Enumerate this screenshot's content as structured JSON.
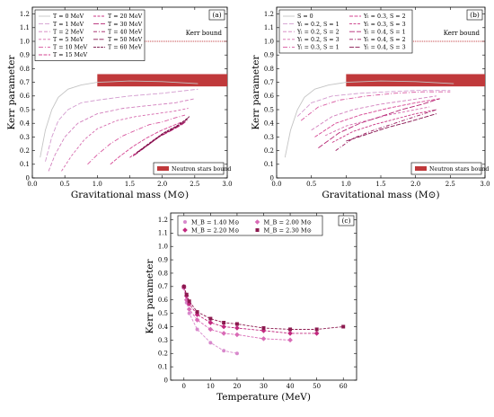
{
  "colors": {
    "band": "#c0393b",
    "bound": "#c0393b",
    "seq": [
      "#c4c4c4",
      "#d39ccf",
      "#d27fbd",
      "#d66aad",
      "#d8569f",
      "#d54391",
      "#c93483",
      "#b52573",
      "#9c1a60",
      "#86134f",
      "#740d42"
    ],
    "c_series": [
      "#d889cc",
      "#d96ab6",
      "#c2287f",
      "#8c1a4f"
    ]
  },
  "chart_data": [
    {
      "type": "line",
      "panel": "(a)",
      "xlabel": "Gravitational mass (M⊙)",
      "ylabel": "Kerr parameter",
      "xlim": [
        0,
        3
      ],
      "ylim": [
        0,
        1.25
      ],
      "xticks": [
        "0.0",
        "0.5",
        "1.0",
        "1.5",
        "2.0",
        "2.5",
        "3.0"
      ],
      "yticks": [
        "0",
        "0.1",
        "0.2",
        "0.3",
        "0.4",
        "0.5",
        "0.6",
        "0.7",
        "0.8",
        "0.9",
        "1.0",
        "1.1",
        "1.2"
      ],
      "legend_position": "top-left",
      "legend_columns": 2,
      "kerr_bound": {
        "value": 1.0,
        "label": "Kerr bound"
      },
      "ns_band": {
        "x": [
          1.0,
          3.0
        ],
        "y": [
          0.67,
          0.76
        ],
        "label": "Neutron stars bound"
      },
      "series": [
        {
          "name": "T = 0 MeV",
          "dash": "solid",
          "x": [
            0.12,
            0.2,
            0.3,
            0.4,
            0.55,
            0.75,
            1.0,
            1.5,
            2.0,
            2.55
          ],
          "y": [
            0.15,
            0.35,
            0.5,
            0.59,
            0.65,
            0.68,
            0.7,
            0.71,
            0.705,
            0.69
          ]
        },
        {
          "name": "T = 1 MeV",
          "dash": "dash",
          "x": [
            0.2,
            0.3,
            0.4,
            0.55,
            0.75,
            1.0,
            1.5,
            2.0,
            2.55
          ],
          "y": [
            0.12,
            0.3,
            0.42,
            0.5,
            0.55,
            0.57,
            0.6,
            0.62,
            0.65
          ]
        },
        {
          "name": "T = 2 MeV",
          "dash": "dash",
          "x": [
            0.25,
            0.35,
            0.5,
            0.7,
            1.0,
            1.4,
            1.8,
            2.2,
            2.5
          ],
          "y": [
            0.05,
            0.17,
            0.3,
            0.4,
            0.47,
            0.51,
            0.53,
            0.55,
            0.58
          ]
        },
        {
          "name": "T = 5 MeV",
          "dash": "dash",
          "x": [
            0.45,
            0.6,
            0.8,
            1.0,
            1.3,
            1.6,
            1.9,
            2.2,
            2.4
          ],
          "y": [
            0.05,
            0.16,
            0.28,
            0.36,
            0.42,
            0.45,
            0.47,
            0.49,
            0.51
          ]
        },
        {
          "name": "T = 10 MeV",
          "dash": "dash",
          "x": [
            0.85,
            1.0,
            1.2,
            1.4,
            1.6,
            1.8,
            2.0,
            2.2,
            2.35
          ],
          "y": [
            0.1,
            0.17,
            0.25,
            0.31,
            0.35,
            0.39,
            0.41,
            0.44,
            0.46
          ]
        },
        {
          "name": "T = 15 MeV",
          "dash": "dash",
          "x": [
            1.2,
            1.35,
            1.55,
            1.75,
            1.95,
            2.15,
            2.35
          ],
          "y": [
            0.1,
            0.16,
            0.23,
            0.29,
            0.34,
            0.38,
            0.42
          ]
        },
        {
          "name": "T = 20 MeV",
          "dash": "dash",
          "x": [
            1.5,
            1.7,
            1.9,
            2.1,
            2.25,
            2.35
          ],
          "y": [
            0.15,
            0.22,
            0.29,
            0.34,
            0.38,
            0.41
          ]
        },
        {
          "name": "T = 30 MeV",
          "dash": "dash",
          "x": [
            1.55,
            1.75,
            1.95,
            2.15,
            2.3,
            2.38
          ],
          "y": [
            0.16,
            0.23,
            0.3,
            0.35,
            0.39,
            0.42
          ]
        },
        {
          "name": "T = 40 MeV",
          "dash": "dash",
          "x": [
            1.58,
            1.78,
            1.98,
            2.18,
            2.32,
            2.4
          ],
          "y": [
            0.17,
            0.24,
            0.31,
            0.36,
            0.4,
            0.43
          ]
        },
        {
          "name": "T = 50 MeV",
          "dash": "dash",
          "x": [
            1.6,
            1.8,
            2.0,
            2.2,
            2.33,
            2.4
          ],
          "y": [
            0.18,
            0.25,
            0.32,
            0.37,
            0.41,
            0.44
          ]
        },
        {
          "name": "T = 60 MeV",
          "dash": "dash",
          "x": [
            1.62,
            1.82,
            2.02,
            2.22,
            2.34,
            2.42
          ],
          "y": [
            0.19,
            0.26,
            0.33,
            0.38,
            0.42,
            0.45
          ]
        }
      ]
    },
    {
      "type": "line",
      "panel": "(b)",
      "xlabel": "Gravitational mass (M⊙)",
      "ylabel": "Kerr parameter",
      "xlim": [
        0,
        3
      ],
      "ylim": [
        0,
        1.25
      ],
      "xticks": [
        "0.0",
        "0.5",
        "1.0",
        "1.5",
        "2.0",
        "2.5",
        "3.0"
      ],
      "yticks": [
        "0",
        "0.1",
        "0.2",
        "0.3",
        "0.4",
        "0.5",
        "0.6",
        "0.7",
        "0.8",
        "0.9",
        "1.0",
        "1.1",
        "1.2"
      ],
      "legend_position": "top-left",
      "legend_columns": 2,
      "kerr_bound": {
        "value": 1.0,
        "label": "Kerr bound"
      },
      "ns_band": {
        "x": [
          1.0,
          3.0
        ],
        "y": [
          0.67,
          0.76
        ],
        "label": "Neutron stars bound"
      },
      "series": [
        {
          "name": "S = 0",
          "dash": "solid",
          "x": [
            0.12,
            0.2,
            0.3,
            0.4,
            0.55,
            0.75,
            1.0,
            1.5,
            2.0,
            2.55
          ],
          "y": [
            0.15,
            0.35,
            0.5,
            0.59,
            0.65,
            0.68,
            0.7,
            0.71,
            0.705,
            0.69
          ]
        },
        {
          "name": "Yₗ = 0.2, S = 1",
          "dash": "dash",
          "x": [
            0.3,
            0.5,
            0.8,
            1.2,
            1.6,
            2.0,
            2.5
          ],
          "y": [
            0.45,
            0.55,
            0.6,
            0.62,
            0.63,
            0.64,
            0.64
          ]
        },
        {
          "name": "Yₗ = 0.2, S = 2",
          "dash": "dash",
          "x": [
            0.5,
            0.8,
            1.1,
            1.5,
            1.9,
            2.3
          ],
          "y": [
            0.35,
            0.45,
            0.5,
            0.54,
            0.57,
            0.6
          ]
        },
        {
          "name": "Yₗ = 0.2, S = 3",
          "dash": "dash",
          "x": [
            0.7,
            1.0,
            1.3,
            1.6,
            1.9,
            2.2
          ],
          "y": [
            0.31,
            0.38,
            0.42,
            0.46,
            0.49,
            0.52
          ]
        },
        {
          "name": "Yₗ = 0.3, S = 1",
          "dash": "dash",
          "x": [
            0.35,
            0.6,
            0.9,
            1.3,
            1.7,
            2.1,
            2.5
          ],
          "y": [
            0.42,
            0.52,
            0.57,
            0.6,
            0.62,
            0.63,
            0.63
          ]
        },
        {
          "name": "Yₗ = 0.3, S = 2",
          "dash": "dash",
          "x": [
            0.55,
            0.85,
            1.2,
            1.6,
            2.0,
            2.35
          ],
          "y": [
            0.3,
            0.4,
            0.46,
            0.51,
            0.55,
            0.58
          ]
        },
        {
          "name": "Yₗ = 0.3, S = 3",
          "dash": "dash",
          "x": [
            0.8,
            1.1,
            1.4,
            1.7,
            2.0,
            2.3
          ],
          "y": [
            0.26,
            0.34,
            0.39,
            0.43,
            0.47,
            0.5
          ]
        },
        {
          "name": "Yₗ = 0.4, S = 1",
          "dash": "dash",
          "x": [
            0.6,
            0.9,
            1.2,
            1.5,
            1.8,
            2.1,
            2.35
          ],
          "y": [
            0.22,
            0.33,
            0.4,
            0.45,
            0.5,
            0.54,
            0.58
          ]
        },
        {
          "name": "Yₗ = 0.4, S = 2",
          "dash": "dash",
          "x": [
            0.85,
            1.1,
            1.4,
            1.7,
            2.0,
            2.3
          ],
          "y": [
            0.2,
            0.29,
            0.35,
            0.4,
            0.45,
            0.5
          ]
        },
        {
          "name": "Yₗ = 0.4, S = 3",
          "dash": "dash",
          "x": [
            1.0,
            1.3,
            1.6,
            1.9,
            2.1,
            2.3
          ],
          "y": [
            0.27,
            0.32,
            0.37,
            0.41,
            0.44,
            0.47
          ]
        }
      ]
    },
    {
      "type": "line",
      "panel": "(c)",
      "xlabel": "Temperature (MeV)",
      "ylabel": "Kerr parameter",
      "xlim": [
        -5,
        65
      ],
      "ylim": [
        0,
        1.25
      ],
      "xticks": [
        "0",
        "10",
        "20",
        "30",
        "40",
        "50",
        "60"
      ],
      "yticks": [
        "0",
        "0.1",
        "0.2",
        "0.3",
        "0.4",
        "0.5",
        "0.6",
        "0.7",
        "0.8",
        "0.9",
        "1.0",
        "1.1",
        "1.2"
      ],
      "legend_position": "top",
      "series": [
        {
          "name": "M_B = 1.40 M⊙",
          "marker": "circle",
          "x": [
            0,
            1,
            2,
            5,
            10,
            15,
            20
          ],
          "y": [
            0.69,
            0.58,
            0.5,
            0.38,
            0.28,
            0.22,
            0.2
          ]
        },
        {
          "name": "M_B = 2.00 M⊙",
          "marker": "diamond",
          "x": [
            0,
            1,
            2,
            5,
            10,
            15,
            20,
            30,
            40
          ],
          "y": [
            0.69,
            0.6,
            0.53,
            0.45,
            0.38,
            0.35,
            0.34,
            0.31,
            0.3
          ]
        },
        {
          "name": "M_B = 2.20 M⊙",
          "marker": "diamond",
          "x": [
            0,
            1,
            2,
            5,
            10,
            15,
            20,
            30,
            40,
            50
          ],
          "y": [
            0.7,
            0.63,
            0.57,
            0.49,
            0.43,
            0.4,
            0.39,
            0.37,
            0.35,
            0.35
          ]
        },
        {
          "name": "M_B = 2.30 M⊙",
          "marker": "square",
          "x": [
            0,
            1,
            2,
            5,
            10,
            15,
            20,
            30,
            40,
            50,
            60
          ],
          "y": [
            0.7,
            0.64,
            0.59,
            0.51,
            0.46,
            0.43,
            0.42,
            0.39,
            0.38,
            0.38,
            0.4
          ]
        }
      ]
    }
  ]
}
